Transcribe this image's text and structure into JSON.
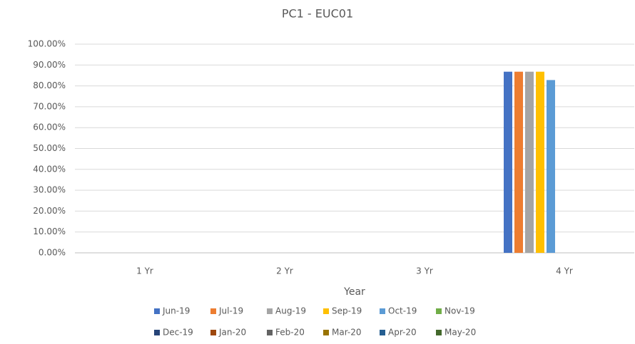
{
  "chart_data": {
    "type": "bar",
    "title": "PC1 - EUC01",
    "x_label": "Year",
    "categories": [
      "1 Yr",
      "2 Yr",
      "3 Yr",
      "4 Yr"
    ],
    "series": [
      {
        "name": "Jun-19",
        "color": "#4472c4",
        "values": [
          null,
          null,
          null,
          86.8
        ]
      },
      {
        "name": "Jul-19",
        "color": "#ed7d31",
        "values": [
          null,
          null,
          null,
          86.8
        ]
      },
      {
        "name": "Aug-19",
        "color": "#a5a5a5",
        "values": [
          null,
          null,
          null,
          86.8
        ]
      },
      {
        "name": "Sep-19",
        "color": "#ffc000",
        "values": [
          null,
          null,
          null,
          86.8
        ]
      },
      {
        "name": "Oct-19",
        "color": "#5b9bd5",
        "values": [
          null,
          null,
          null,
          82.8
        ]
      },
      {
        "name": "Nov-19",
        "color": "#70ad47",
        "values": [
          null,
          null,
          null,
          null
        ]
      },
      {
        "name": "Dec-19",
        "color": "#264478",
        "values": [
          null,
          null,
          null,
          null
        ]
      },
      {
        "name": "Jan-20",
        "color": "#9e480e",
        "values": [
          null,
          null,
          null,
          null
        ]
      },
      {
        "name": "Feb-20",
        "color": "#636363",
        "values": [
          null,
          null,
          null,
          null
        ]
      },
      {
        "name": "Mar-20",
        "color": "#997300",
        "values": [
          null,
          null,
          null,
          null
        ]
      },
      {
        "name": "Apr-20",
        "color": "#255e91",
        "values": [
          null,
          null,
          null,
          null
        ]
      },
      {
        "name": "May-20",
        "color": "#43682b",
        "values": [
          null,
          null,
          null,
          null
        ]
      }
    ],
    "ylim": [
      0,
      100
    ],
    "yticks": [
      {
        "value": 0,
        "label": "0.00%"
      },
      {
        "value": 10,
        "label": "10.00%"
      },
      {
        "value": 20,
        "label": "20.00%"
      },
      {
        "value": 30,
        "label": "30.00%"
      },
      {
        "value": 40,
        "label": "40.00%"
      },
      {
        "value": 50,
        "label": "50.00%"
      },
      {
        "value": 60,
        "label": "60.00%"
      },
      {
        "value": 70,
        "label": "70.00%"
      },
      {
        "value": 80,
        "label": "80.00%"
      },
      {
        "value": 90,
        "label": "90.00%"
      },
      {
        "value": 100,
        "label": "100.00%"
      }
    ],
    "grid": true,
    "legend": "bottom"
  }
}
